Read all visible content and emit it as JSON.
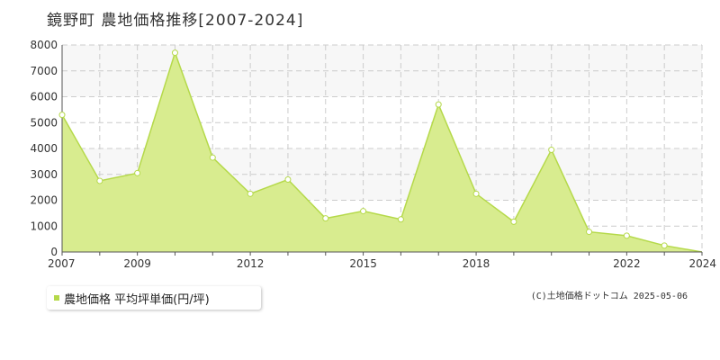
{
  "title": "鏡野町 農地価格推移[2007-2024]",
  "legend": {
    "label": "農地価格 平均坪単価(円/坪)"
  },
  "credit": "(C)土地価格ドットコム 2025-05-06",
  "colors": {
    "fill": "#d8ec8f",
    "line": "#b5d94a",
    "point_fill": "#ffffff",
    "grid": "#cccccc",
    "band": "#f7f7f7",
    "axis": "#555555"
  },
  "chart_data": {
    "type": "area",
    "title": "鏡野町 農地価格推移[2007-2024]",
    "x": [
      2007,
      2008,
      2009,
      2010,
      2011,
      2012,
      2013,
      2014,
      2015,
      2016,
      2017,
      2018,
      2019,
      2020,
      2021,
      2022,
      2023,
      2024
    ],
    "series": [
      {
        "name": "農地価格 平均坪単価(円/坪)",
        "values": [
          5300,
          2750,
          3050,
          7700,
          3650,
          2250,
          2800,
          1300,
          1580,
          1260,
          5700,
          2250,
          1170,
          3950,
          780,
          630,
          250,
          0
        ]
      }
    ],
    "x_tick_labels": [
      "2007",
      "2009",
      "2012",
      "2015",
      "2018",
      "2022",
      "2024"
    ],
    "y_tick_labels": [
      "0",
      "1000",
      "2000",
      "3000",
      "4000",
      "5000",
      "6000",
      "7000",
      "8000"
    ],
    "xlim": [
      2007,
      2023
    ],
    "ylim": [
      0,
      8000
    ],
    "grid": true,
    "legend_position": "bottom-left"
  }
}
